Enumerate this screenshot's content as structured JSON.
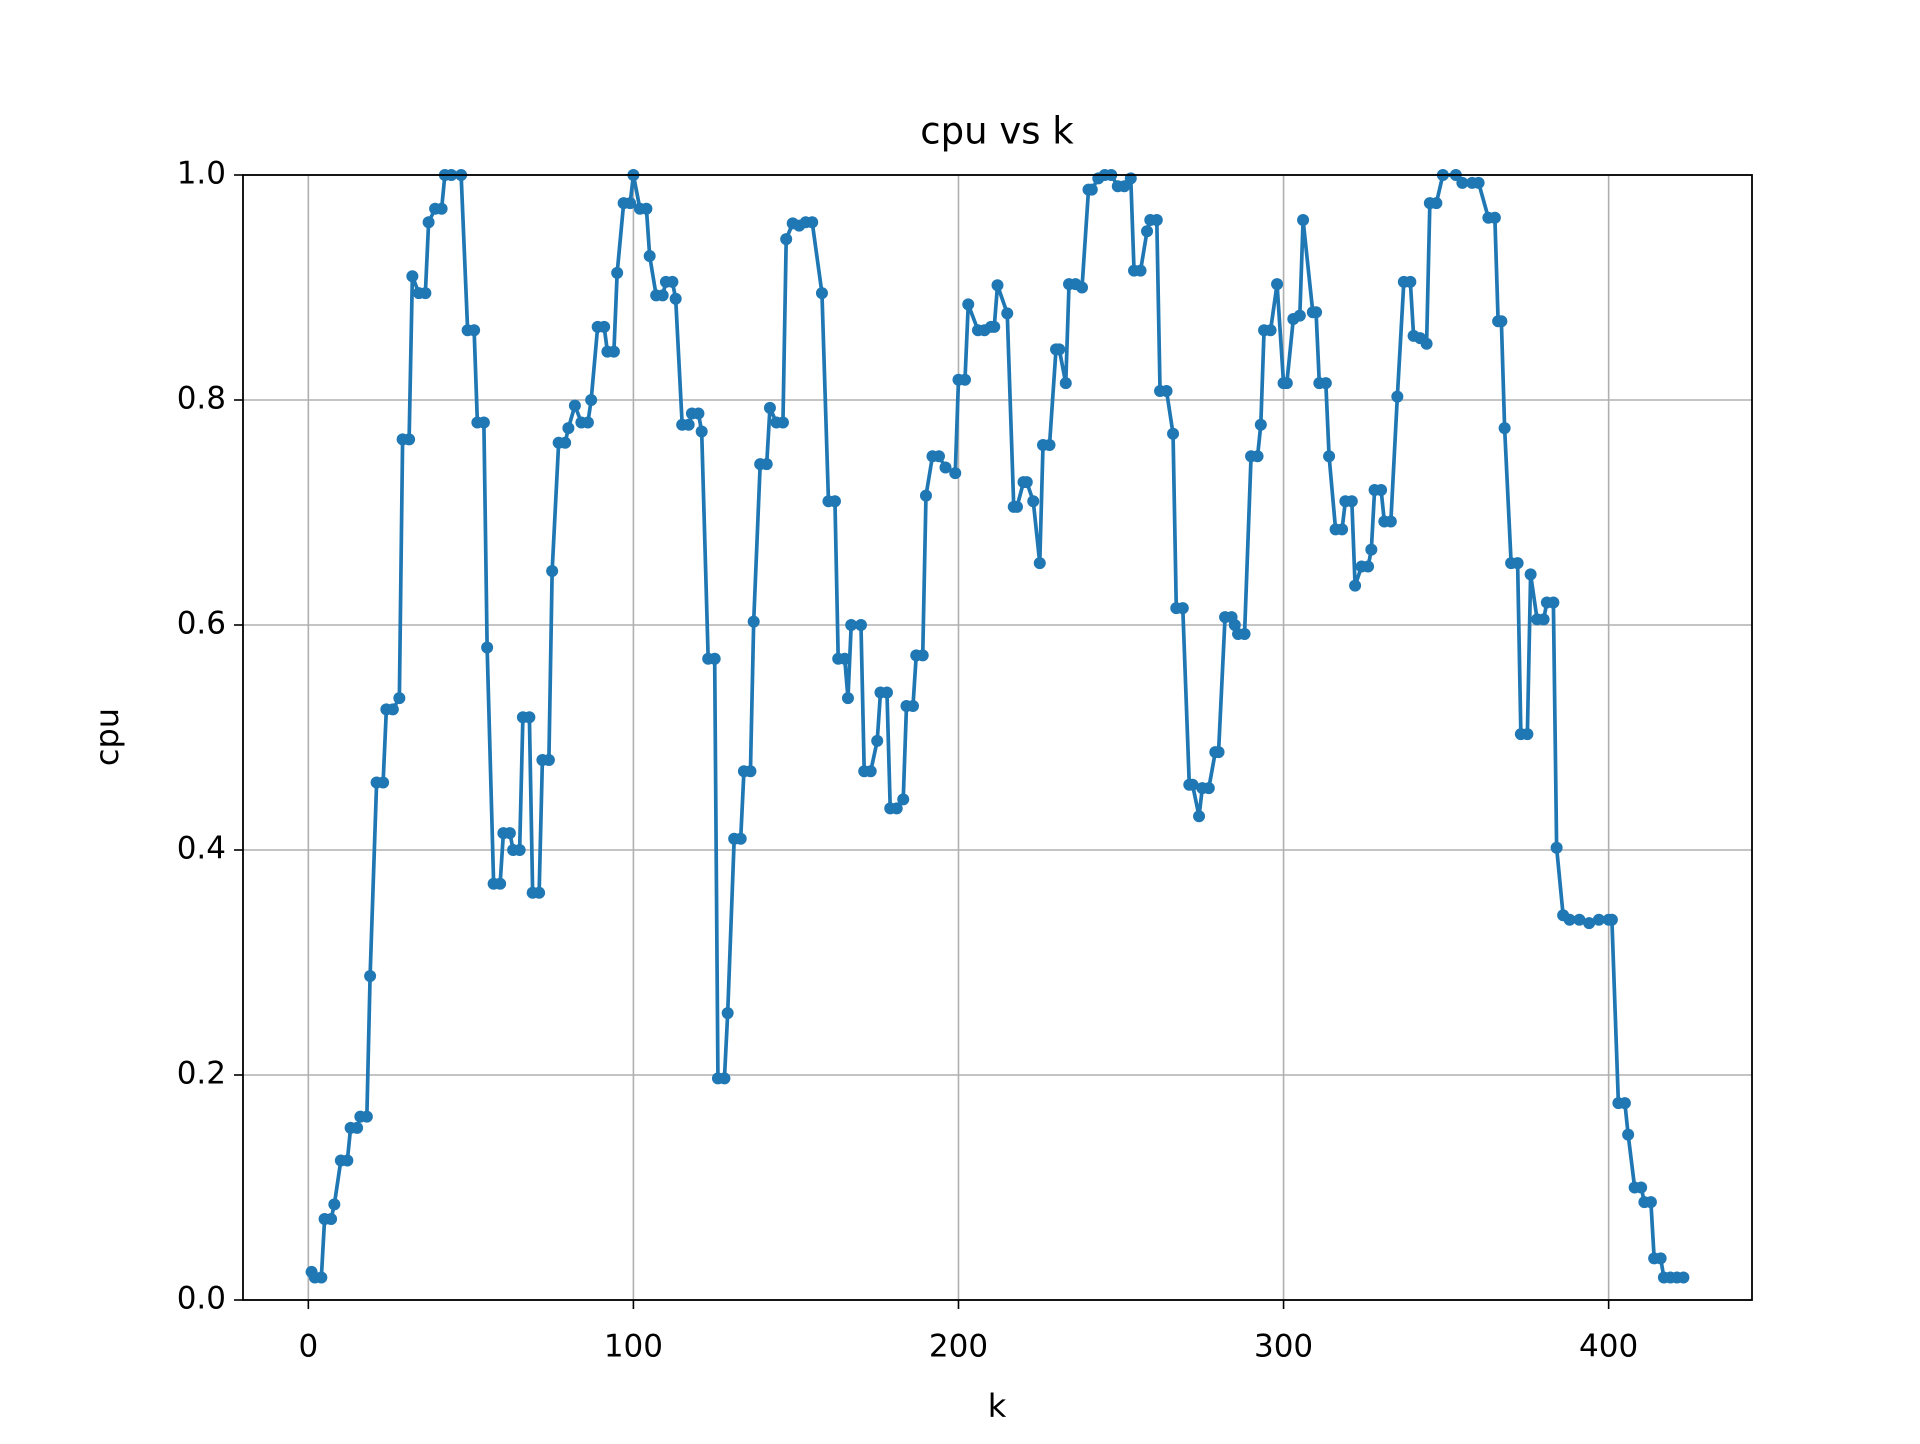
{
  "chart_data": {
    "type": "line",
    "title": "cpu vs k",
    "x_label": "k",
    "y_label": "cpu",
    "color": "#1f77b4",
    "marker": "o",
    "grid": true,
    "xlim": [
      -20.1,
      444.1
    ],
    "ylim": [
      0,
      1
    ],
    "xticks": [
      0,
      100,
      200,
      300,
      400
    ],
    "yticks": [
      {
        "value": 0,
        "label": "0.0"
      },
      {
        "value": 0.2,
        "label": "0.2"
      },
      {
        "value": 0.4,
        "label": "0.4"
      },
      {
        "value": 0.6,
        "label": "0.6"
      },
      {
        "value": 0.8,
        "label": "0.8"
      },
      {
        "value": 1,
        "label": "1.0"
      }
    ],
    "x": [
      1,
      2,
      4,
      5,
      7,
      8,
      10,
      12,
      13,
      15,
      16,
      18,
      19,
      21,
      23,
      24,
      26,
      28,
      29,
      31,
      32,
      34,
      36,
      37,
      39,
      41,
      42,
      44,
      47,
      49,
      51,
      52,
      54,
      55,
      57,
      59,
      60,
      62,
      63,
      65,
      66,
      68,
      69,
      71,
      72,
      74,
      75,
      77,
      79,
      80,
      82,
      84,
      86,
      87,
      89,
      91,
      92,
      94,
      95,
      97,
      99,
      100,
      102,
      104,
      105,
      107,
      109,
      110,
      112,
      113,
      115,
      117,
      118,
      120,
      121,
      123,
      125,
      126,
      128,
      129,
      131,
      133,
      134,
      136,
      137,
      139,
      141,
      142,
      144,
      146,
      147,
      149,
      151,
      153,
      155,
      158,
      160,
      162,
      163,
      165,
      166,
      167,
      170,
      171,
      173,
      175,
      176,
      178,
      179,
      181,
      183,
      184,
      186,
      187,
      189,
      190,
      192,
      194,
      196,
      199,
      200,
      202,
      203,
      206,
      208,
      210,
      211,
      212,
      215,
      217,
      218,
      220,
      221,
      223,
      225,
      226,
      228,
      230,
      231,
      233,
      234,
      236,
      238,
      240,
      241,
      243,
      245,
      247,
      249,
      251,
      253,
      254,
      256,
      258,
      259,
      261,
      262,
      264,
      266,
      267,
      269,
      271,
      272,
      274,
      275,
      277,
      279,
      280,
      282,
      284,
      285,
      286,
      288,
      290,
      292,
      293,
      294,
      296,
      298,
      300,
      301,
      303,
      305,
      306,
      309,
      310,
      311,
      313,
      314,
      316,
      318,
      319,
      321,
      322,
      324,
      326,
      327,
      328,
      330,
      331,
      333,
      335,
      337,
      339,
      340,
      342,
      344,
      345,
      347,
      349,
      353,
      355,
      358,
      360,
      363,
      365,
      366,
      367,
      368,
      370,
      372,
      373,
      375,
      376,
      378,
      380,
      381,
      383,
      384,
      386,
      388,
      391,
      394,
      397,
      400,
      401,
      403,
      405,
      406,
      408,
      410,
      411,
      413,
      414,
      416,
      417,
      419,
      421,
      423
    ],
    "values": [
      0.025,
      0.02,
      0.02,
      0.072,
      0.072,
      0.085,
      0.124,
      0.124,
      0.153,
      0.153,
      0.163,
      0.163,
      0.288,
      0.46,
      0.46,
      0.525,
      0.525,
      0.535,
      0.765,
      0.765,
      0.91,
      0.895,
      0.895,
      0.958,
      0.97,
      0.97,
      1.0,
      1.0,
      1.0,
      0.862,
      0.862,
      0.78,
      0.78,
      0.58,
      0.37,
      0.37,
      0.415,
      0.415,
      0.4,
      0.4,
      0.518,
      0.518,
      0.362,
      0.362,
      0.48,
      0.48,
      0.648,
      0.762,
      0.762,
      0.775,
      0.795,
      0.78,
      0.78,
      0.8,
      0.865,
      0.865,
      0.843,
      0.843,
      0.913,
      0.975,
      0.975,
      1.0,
      0.97,
      0.97,
      0.928,
      0.893,
      0.893,
      0.905,
      0.905,
      0.89,
      0.778,
      0.778,
      0.788,
      0.788,
      0.772,
      0.57,
      0.57,
      0.197,
      0.197,
      0.255,
      0.41,
      0.41,
      0.47,
      0.47,
      0.603,
      0.743,
      0.743,
      0.793,
      0.78,
      0.78,
      0.943,
      0.957,
      0.955,
      0.958,
      0.958,
      0.895,
      0.71,
      0.71,
      0.57,
      0.57,
      0.535,
      0.6,
      0.6,
      0.47,
      0.47,
      0.497,
      0.54,
      0.54,
      0.437,
      0.437,
      0.445,
      0.528,
      0.528,
      0.573,
      0.573,
      0.715,
      0.75,
      0.75,
      0.74,
      0.735,
      0.818,
      0.818,
      0.885,
      0.862,
      0.862,
      0.865,
      0.865,
      0.902,
      0.877,
      0.705,
      0.705,
      0.727,
      0.727,
      0.71,
      0.655,
      0.76,
      0.76,
      0.845,
      0.845,
      0.815,
      0.903,
      0.903,
      0.9,
      0.987,
      0.987,
      0.997,
      1.0,
      1.0,
      0.99,
      0.99,
      0.997,
      0.915,
      0.915,
      0.95,
      0.96,
      0.96,
      0.808,
      0.808,
      0.77,
      0.615,
      0.615,
      0.458,
      0.458,
      0.43,
      0.455,
      0.455,
      0.487,
      0.487,
      0.607,
      0.607,
      0.6,
      0.592,
      0.592,
      0.75,
      0.75,
      0.778,
      0.862,
      0.862,
      0.903,
      0.815,
      0.815,
      0.872,
      0.875,
      0.96,
      0.878,
      0.878,
      0.815,
      0.815,
      0.75,
      0.685,
      0.685,
      0.71,
      0.71,
      0.635,
      0.652,
      0.652,
      0.667,
      0.72,
      0.72,
      0.692,
      0.692,
      0.803,
      0.905,
      0.905,
      0.857,
      0.855,
      0.85,
      0.975,
      0.975,
      1.0,
      1.0,
      0.993,
      0.993,
      0.993,
      0.962,
      0.962,
      0.87,
      0.87,
      0.775,
      0.655,
      0.655,
      0.503,
      0.503,
      0.645,
      0.605,
      0.605,
      0.62,
      0.62,
      0.402,
      0.342,
      0.338,
      0.338,
      0.335,
      0.338,
      0.338,
      0.338,
      0.175,
      0.175,
      0.147,
      0.1,
      0.1,
      0.087,
      0.087,
      0.037,
      0.037,
      0.02,
      0.02,
      0.02,
      0.02
    ]
  }
}
